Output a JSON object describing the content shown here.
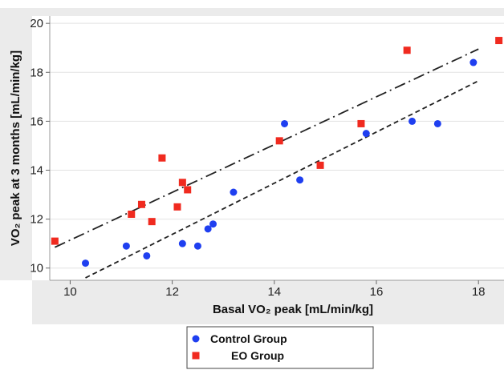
{
  "chart_data": {
    "type": "scatter",
    "xlabel": "Basal VO₂ peak [mL/min/kg]",
    "ylabel": "VO₂ peak at 3 months [mL/min/kg]",
    "xlim": [
      9.6,
      18.5
    ],
    "ylim": [
      9.5,
      20.3
    ],
    "x_ticks": [
      10,
      12,
      14,
      16,
      18
    ],
    "y_ticks": [
      10,
      12,
      14,
      16,
      18,
      20
    ],
    "grid": "horizontal",
    "legend_position": "bottom-center",
    "series": [
      {
        "name": "Control Group",
        "marker": "circle",
        "color": "#1f3ff0",
        "points": [
          [
            10.3,
            10.2
          ],
          [
            11.1,
            10.9
          ],
          [
            11.5,
            10.5
          ],
          [
            12.2,
            11.0
          ],
          [
            12.5,
            10.9
          ],
          [
            12.7,
            11.6
          ],
          [
            12.8,
            11.8
          ],
          [
            13.2,
            13.1
          ],
          [
            14.2,
            15.9
          ],
          [
            14.5,
            13.6
          ],
          [
            15.8,
            15.5
          ],
          [
            16.7,
            16.0
          ],
          [
            17.2,
            15.9
          ],
          [
            17.9,
            18.4
          ]
        ]
      },
      {
        "name": "EO Group",
        "marker": "square",
        "color": "#f02a1f",
        "points": [
          [
            9.7,
            11.1
          ],
          [
            11.2,
            12.2
          ],
          [
            11.4,
            12.6
          ],
          [
            11.6,
            11.9
          ],
          [
            11.8,
            14.5
          ],
          [
            12.1,
            12.5
          ],
          [
            12.2,
            13.5
          ],
          [
            12.3,
            13.2
          ],
          [
            14.1,
            15.2
          ],
          [
            14.9,
            14.2
          ],
          [
            15.7,
            15.9
          ],
          [
            16.6,
            18.9
          ],
          [
            18.4,
            19.3
          ]
        ]
      }
    ],
    "fit_lines": [
      {
        "style": "long-dash-dot",
        "color": "#222222",
        "from": [
          9.7,
          10.85
        ],
        "to": [
          18.0,
          18.95
        ]
      },
      {
        "style": "short-dash",
        "color": "#222222",
        "from": [
          10.3,
          9.6
        ],
        "to": [
          18.0,
          17.65
        ]
      }
    ]
  }
}
